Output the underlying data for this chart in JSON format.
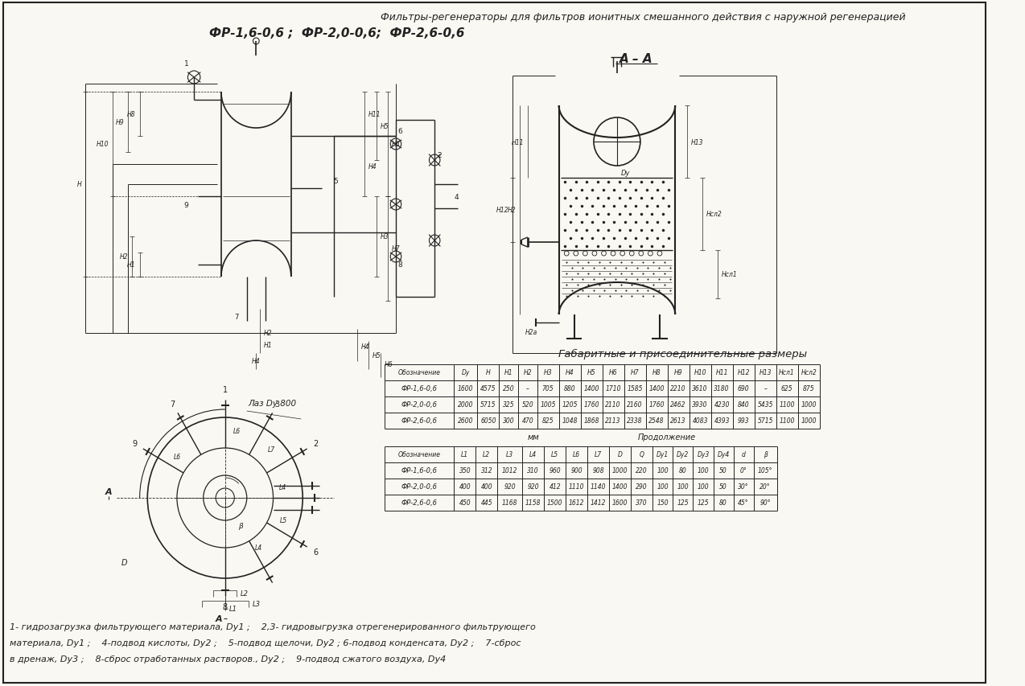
{
  "title_line1": "Фильтры-регенераторы для фильтров ионитных смешанного действия с наружной регенерацией",
  "title_line2": "ФР-1,6-0,6 ;  ФР-2,0-0,6;  ФР-2,6-0,6",
  "section_label": "А – А",
  "table_title": "Габаритные и присоединительные размеры",
  "mm_label": "мм",
  "prod_label": "Продолжение",
  "table1_headers": [
    "Обозначение",
    "Dу",
    "H",
    "H1",
    "H2",
    "H3",
    "H4",
    "H5",
    "H6",
    "H7",
    "H8",
    "H9",
    "H10",
    "H11",
    "H12",
    "H13",
    "Hсл1",
    "Hсл2"
  ],
  "table1_rows": [
    [
      "ФР-1,6-0,6",
      "1600",
      "4575",
      "250",
      "–",
      "705",
      "880",
      "1400",
      "1710",
      "1585",
      "1400",
      "2210",
      "3610",
      "3180",
      "690",
      "–",
      "625",
      "875"
    ],
    [
      "ФР-2,0-0,6",
      "2000",
      "5715",
      "325",
      "520",
      "1005",
      "1205",
      "1760",
      "2110",
      "2160",
      "1760",
      "2462",
      "3930",
      "4230",
      "840",
      "5435",
      "1100",
      "1000"
    ],
    [
      "ФР-2,6-0,6",
      "2600",
      "6050",
      "300",
      "470",
      "825",
      "1048",
      "1868",
      "2113",
      "2338",
      "2548",
      "2613",
      "4083",
      "4393",
      "993",
      "5715",
      "1100",
      "1000"
    ]
  ],
  "table2_headers": [
    "Обозначение",
    "L1",
    "L2",
    "L3",
    "L4",
    "L5",
    "L6",
    "L7",
    "D",
    "Q",
    "Dу1",
    "Dу2",
    "Dу3",
    "Dу4",
    "d",
    "β"
  ],
  "table2_rows": [
    [
      "ФР-1,6-0,6",
      "350",
      "312",
      "1012",
      "310",
      "960",
      "900",
      "908",
      "1000",
      "220",
      "100",
      "80",
      "100",
      "50",
      "0°",
      "105°"
    ],
    [
      "ФР-2,0-0,6",
      "400",
      "400",
      "920",
      "920",
      "412",
      "1110",
      "1140",
      "1400",
      "290",
      "100",
      "100",
      "100",
      "50",
      "30°",
      "20°"
    ],
    [
      "ФР-2,6-0,6",
      "450",
      "445",
      "1168",
      "1158",
      "1500",
      "1612",
      "1412",
      "1600",
      "370",
      "150",
      "125",
      "125",
      "80",
      "45°",
      "90°"
    ]
  ],
  "footnote_lines": [
    "1- гидрозагрузка фильтрующего материала, Dу1 ;    2,3- гидровыгрузка отрегенерированного фильтрующего",
    "материала, Dу1 ;    4-подвод кислоты, Dу2 ;    5-подвод щелочи, Dу2 ; 6-подвод конденсата, Dу2 ;    7-сброс",
    "в дренаж, Dу3 ;    8-сброс отработанных растворов., Dу2 ;    9-подвод сжатого воздуха, Dу4"
  ],
  "bg_color": "#faf8f2",
  "line_color": "#222222",
  "text_color": "#222222"
}
